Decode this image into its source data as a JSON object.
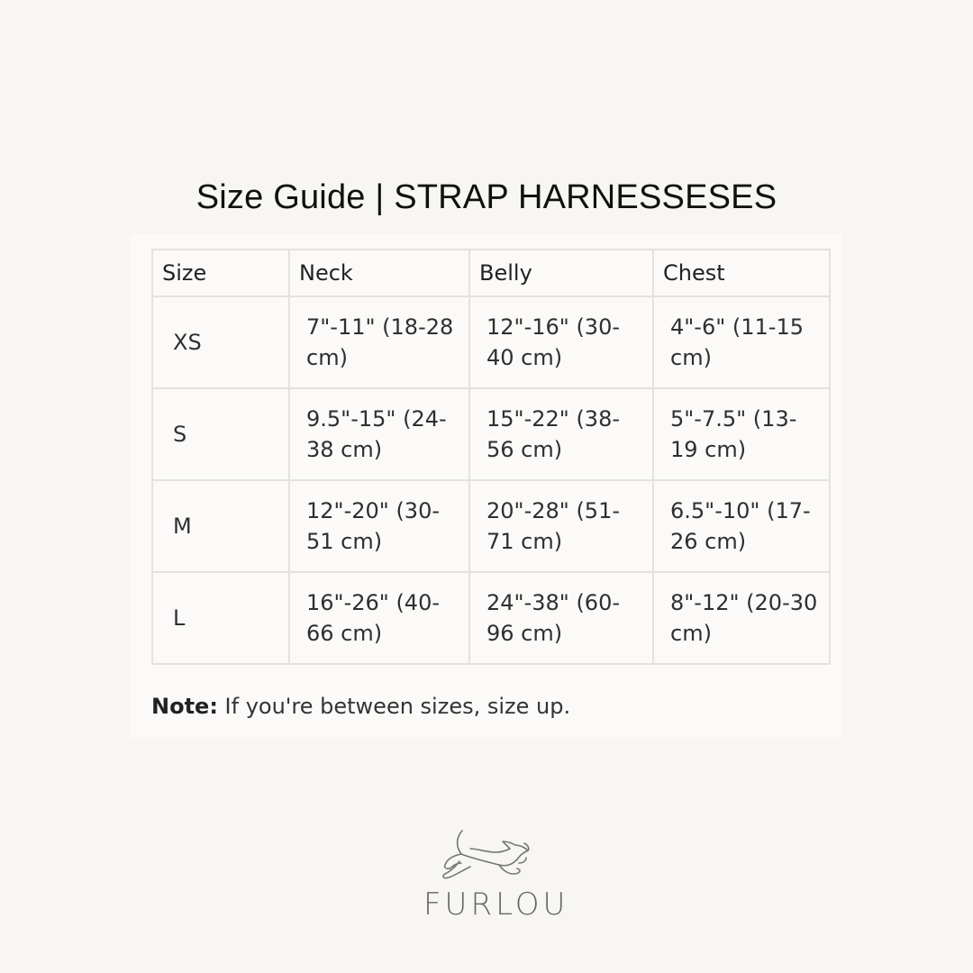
{
  "title": "Size Guide | STRAP HARNESSESES",
  "table": {
    "headers": [
      "Size",
      "Neck",
      "Belly",
      "Chest"
    ],
    "rows": [
      [
        "XS",
        "7\"-11\" (18-28 cm)",
        "12\"-16\" (30-40 cm)",
        "4\"-6\" (11-15 cm)"
      ],
      [
        "S",
        "9.5\"-15\" (24-38 cm)",
        "15\"-22\" (38-56 cm)",
        "5\"-7.5\" (13-19 cm)"
      ],
      [
        "M",
        "12\"-20\" (30-51 cm)",
        "20\"-28\" (51-71 cm)",
        "6.5\"-10\" (17-26 cm)"
      ],
      [
        "L",
        "16\"-26\" (40-66 cm)",
        "24\"-38\" (60-96 cm)",
        "8\"-12\" (20-30 cm)"
      ]
    ]
  },
  "note": {
    "label": "Note:",
    "text": " If you're between sizes, size up."
  },
  "logo": {
    "text": "FURLOU",
    "icon": "running-dog-icon"
  },
  "colors": {
    "background": "#f7f6f3",
    "border": "#e4e2dc",
    "logo": "#666666"
  }
}
